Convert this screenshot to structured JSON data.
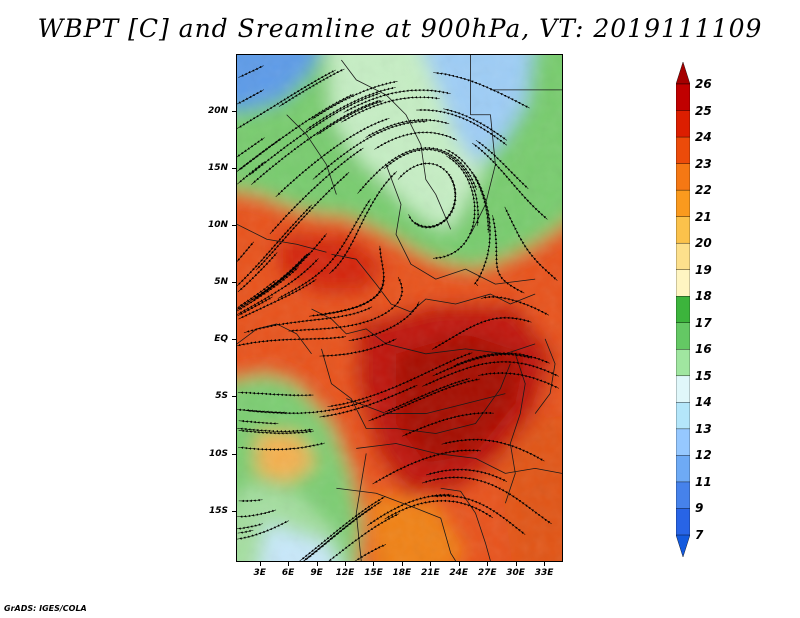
{
  "title": "WBPT [C] and Sreamline at 900hPa, VT: 2019111109",
  "credit": "GrADS: IGES/COLA",
  "map": {
    "lat_labels": [
      "20N",
      "15N",
      "10N",
      "5N",
      "EQ",
      "5S",
      "10S",
      "15S"
    ],
    "lat_values": [
      20,
      15,
      10,
      5,
      0,
      -5,
      -10,
      -15
    ],
    "lon_labels": [
      "3E",
      "6E",
      "9E",
      "12E",
      "15E",
      "18E",
      "21E",
      "24E",
      "27E",
      "30E",
      "33E"
    ],
    "lon_values": [
      3,
      6,
      9,
      12,
      15,
      18,
      21,
      24,
      27,
      30,
      33
    ],
    "lat_range": [
      -19.5,
      25
    ],
    "lon_range": [
      0.5,
      35
    ]
  },
  "colorbar": {
    "labels": [
      "26",
      "25",
      "24",
      "23",
      "22",
      "21",
      "20",
      "19",
      "18",
      "17",
      "16",
      "15",
      "14",
      "13",
      "12",
      "11",
      "9",
      "7"
    ],
    "colors": [
      "#a50000",
      "#c00000",
      "#dc1e00",
      "#ec4b0a",
      "#f57814",
      "#fa9a1e",
      "#fbc24b",
      "#fde08c",
      "#fff5c2",
      "#3cb43c",
      "#64c864",
      "#a0e6a0",
      "#e0f7fa",
      "#b4e6fa",
      "#96c8ff",
      "#6eaaf5",
      "#4682eb",
      "#2864e6",
      "#145ade"
    ]
  }
}
